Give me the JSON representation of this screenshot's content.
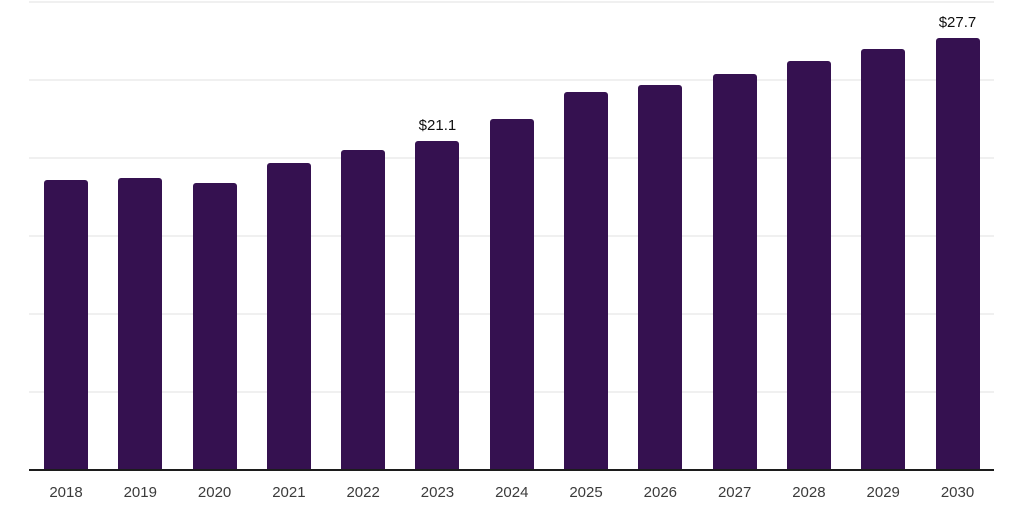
{
  "chart_data": {
    "type": "bar",
    "title": "",
    "xlabel": "",
    "ylabel": "",
    "categories": [
      "2018",
      "2019",
      "2020",
      "2021",
      "2022",
      "2023",
      "2024",
      "2025",
      "2026",
      "2027",
      "2028",
      "2029",
      "2030"
    ],
    "values": [
      18.6,
      18.7,
      18.4,
      19.7,
      20.5,
      21.1,
      22.5,
      24.2,
      24.7,
      25.4,
      26.2,
      27.0,
      27.7
    ],
    "point_labels": {
      "2023": "$21.1",
      "2030": "$27.7"
    },
    "ylim": [
      0,
      30
    ],
    "gridline_step": 5,
    "grid": true,
    "y_axis_tick_labels_visible": false,
    "legend": "none",
    "colors": {
      "bar": "#351150",
      "axis_line": "#1c1c1c",
      "gridline": "#f0f0f0",
      "value_label": "#0f0f0f",
      "tick_label": "#3b3b3b",
      "background": "#ffffff"
    }
  }
}
